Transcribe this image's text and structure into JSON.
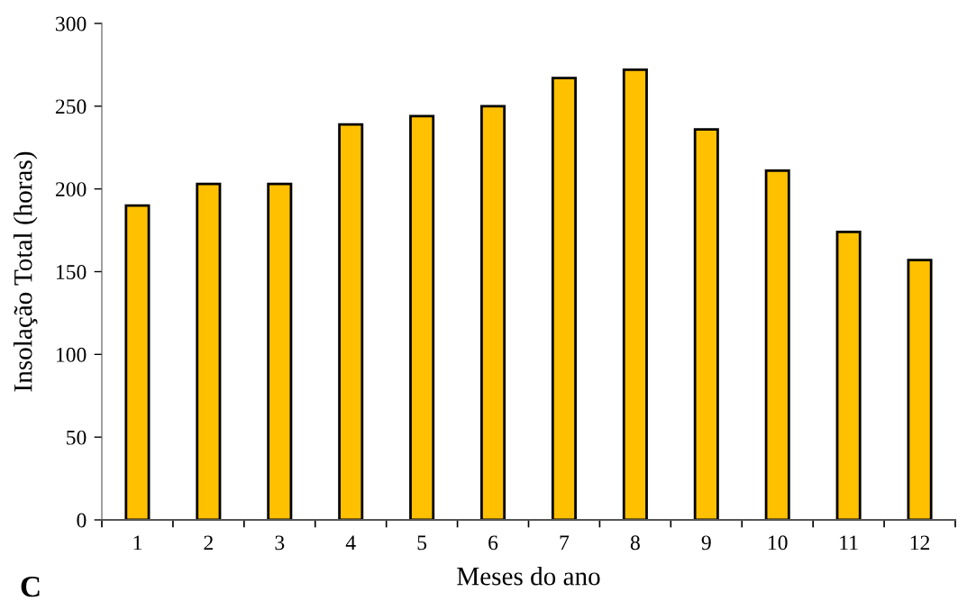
{
  "chart_data": {
    "type": "bar",
    "xlabel": "Meses do ano",
    "ylabel": "Insolação Total (horas)",
    "categories": [
      "1",
      "2",
      "3",
      "4",
      "5",
      "6",
      "7",
      "8",
      "9",
      "10",
      "11",
      "12"
    ],
    "values": [
      190,
      203,
      203,
      239,
      244,
      250,
      267,
      272,
      236,
      211,
      174,
      157
    ],
    "color": "#ffc000",
    "ylim": [
      0,
      300
    ],
    "yticks": [
      0,
      50,
      100,
      150,
      200,
      250,
      300
    ],
    "grid": false,
    "annotations": [
      "C"
    ]
  }
}
